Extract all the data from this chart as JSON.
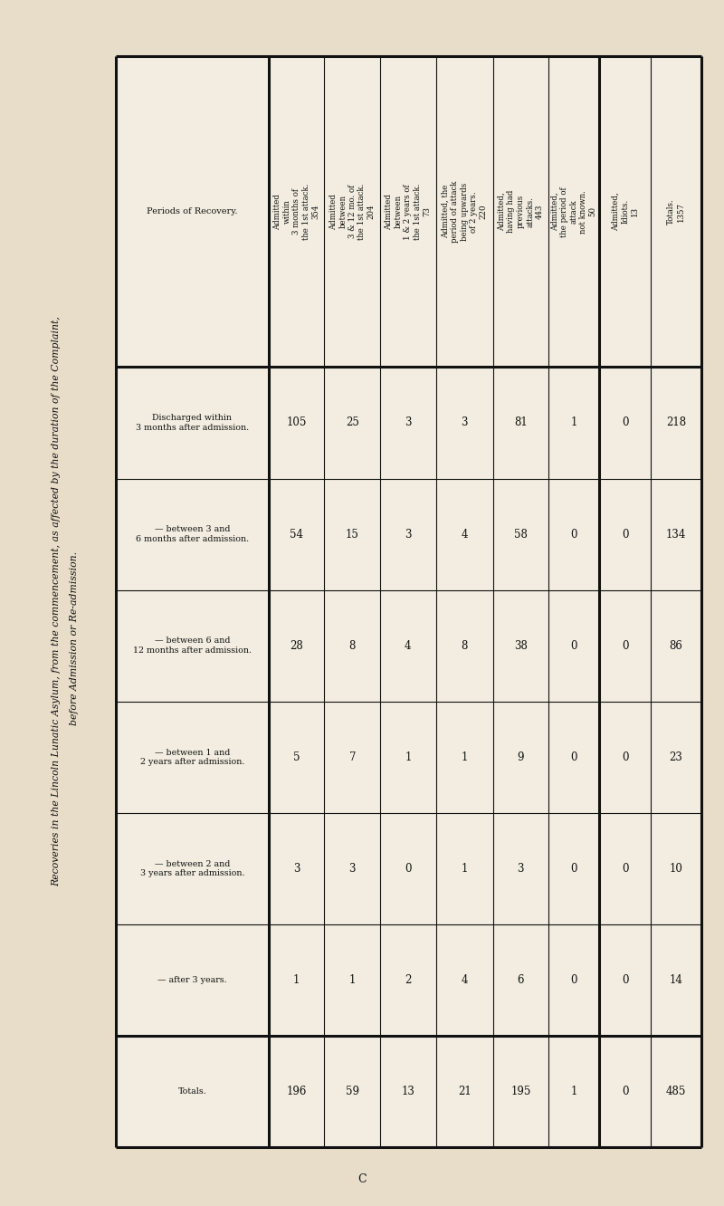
{
  "title_line1": "Recoveries in the Lincoln Lunatic Asylum, from the commencement, as affected by the duration of the Complaint,",
  "title_line2": "before Admission or Re-admission.",
  "page_label": "C",
  "bg_color": "#e8ddc8",
  "table_bg": "#f2ede0",
  "font_color": "#111111",
  "col_headers_rotated": [
    "Admitted\nwithin\n3 months of\nthe 1st attack.\n354",
    "Admitted\nbetween\n3 & 12 mo. of\nthe 1st attack.\n204",
    "Admitted\nbetween\n1 & 2 years of\nthe 1st attack.\n73",
    "Admitted, the\nperiod of attack\nbeing upwards\nof 2 years.\n220",
    "Admitted,\nhaving had\nprevious\nattacks.\n443",
    "Admitted,\nthe period of\nattack\nnot known.\n50",
    "Admitted,\nIdiots.\n13",
    "Totals.\n1357"
  ],
  "row_labels": [
    "Periods of Recovery.",
    "Discharged within\n3 months after admission.",
    "— between 3 and\n6 months after admission.",
    "— between 6 and\n12 months after admission.",
    "— between 1 and\n2 years after admission.",
    "— between 2 and\n3 years after admission.",
    "— after 3 years.",
    "Totals."
  ],
  "data_rows": [
    [
      105,
      25,
      3,
      3,
      81,
      1,
      0,
      218
    ],
    [
      54,
      15,
      3,
      4,
      58,
      0,
      0,
      134
    ],
    [
      28,
      8,
      4,
      8,
      38,
      0,
      0,
      86
    ],
    [
      5,
      7,
      1,
      1,
      9,
      0,
      0,
      23
    ],
    [
      3,
      3,
      0,
      1,
      3,
      0,
      0,
      10
    ],
    [
      1,
      1,
      2,
      4,
      6,
      0,
      0,
      14
    ],
    [
      196,
      59,
      13,
      21,
      195,
      1,
      0,
      485
    ]
  ]
}
